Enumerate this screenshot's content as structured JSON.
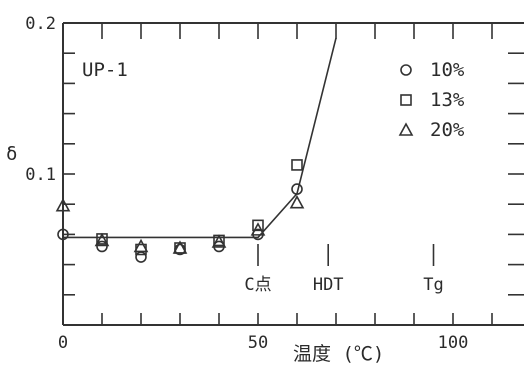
{
  "chart_data": {
    "type": "scatter",
    "xlabel": "温度 (℃)",
    "ylabel": "δ",
    "xlim": [
      0,
      120
    ],
    "ylim": [
      0,
      0.2
    ],
    "x_ticks": [
      {
        "value": 0,
        "label": "0"
      },
      {
        "value": 50,
        "label": "50"
      },
      {
        "value": 100,
        "label": "100"
      }
    ],
    "y_ticks": [
      {
        "value": 0.1,
        "label": "0.1"
      },
      {
        "value": 0.2,
        "label": "0.2"
      }
    ],
    "x_minor_tick_step": 10,
    "y_minor_tick_step": 0.02,
    "panel_label": "UP-1",
    "legend_position": "top-right",
    "series": [
      {
        "name": "10%",
        "marker": "circle",
        "points": [
          [
            0,
            0.06
          ],
          [
            10,
            0.052
          ],
          [
            20,
            0.045
          ],
          [
            30,
            0.05
          ],
          [
            40,
            0.052
          ],
          [
            50,
            0.06
          ],
          [
            60,
            0.09
          ]
        ]
      },
      {
        "name": "13%",
        "marker": "square",
        "points": [
          [
            10,
            0.057
          ],
          [
            20,
            0.05
          ],
          [
            30,
            0.051
          ],
          [
            40,
            0.056
          ],
          [
            50,
            0.066
          ],
          [
            60,
            0.106
          ]
        ]
      },
      {
        "name": "20%",
        "marker": "triangle",
        "points": [
          [
            0,
            0.079
          ],
          [
            10,
            0.056
          ],
          [
            20,
            0.052
          ],
          [
            30,
            0.051
          ],
          [
            40,
            0.055
          ],
          [
            50,
            0.063
          ],
          [
            60,
            0.081
          ]
        ]
      }
    ],
    "trend_line": [
      [
        0,
        0.058
      ],
      [
        50,
        0.058
      ],
      [
        60,
        0.087
      ],
      [
        70,
        0.19
      ]
    ],
    "annotations": [
      {
        "label": "C点",
        "x": 50
      },
      {
        "label": "HDT",
        "x": 68
      },
      {
        "label": "Tg",
        "x": 95
      }
    ],
    "grid": false
  }
}
